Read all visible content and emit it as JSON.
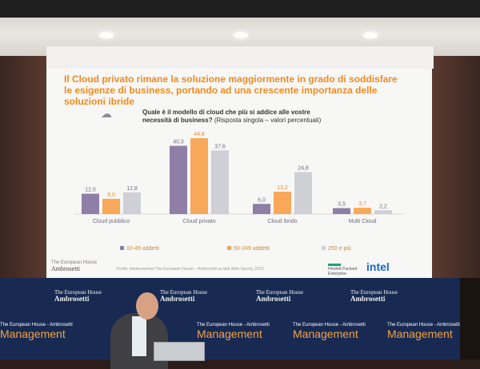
{
  "slide": {
    "headline": "Il Cloud privato rimane la soluzione maggiormente in grado di soddisfare le esigenze di business, portando ad una crescente importanza delle soluzioni ibride",
    "question_bold": "Quale è il modello di cloud che più si addice alle vostre necessità di business?",
    "question_rest": "(Risposta singola – valori percentuali)",
    "source": "Fonte: rielaborazione The European House – Ambrosetti su dati della Survey, 2023",
    "brand_line1": "The European House",
    "brand_line2": "Ambrosetti",
    "partner1_line1": "Hewlett Packard",
    "partner1_line2": "Enterprise",
    "partner2": "intel"
  },
  "chart_data": {
    "type": "bar",
    "categories": [
      "Cloud pubblico",
      "Cloud privato",
      "Cloud ibrido",
      "Multi Cloud"
    ],
    "series": [
      {
        "name": "10-49 addetti",
        "values": [
          12.0,
          40.3,
          6.0,
          3.5
        ],
        "color": "#8f7ea6"
      },
      {
        "name": "50-249 addetti",
        "values": [
          9.0,
          44.8,
          13.2,
          3.7
        ],
        "color": "#f7a859"
      },
      {
        "name": "250 e più",
        "values": [
          12.8,
          37.6,
          24.8,
          2.2
        ],
        "color": "#cfcfd6"
      }
    ],
    "labels": [
      [
        "12,0",
        "40,3",
        "6,0",
        "3,5"
      ],
      [
        "9,0",
        "44,8",
        "13,2",
        "3,7"
      ],
      [
        "12,8",
        "37,6",
        "24,8",
        "2,2"
      ]
    ],
    "ylim": [
      0,
      50
    ],
    "grid": false,
    "legend": "bottom"
  },
  "backdrop": {
    "brand_small": "The European House",
    "brand_name": "Ambrosetti",
    "mgmt_small": "The European House - Ambrosetti",
    "mgmt_word": "Management"
  }
}
